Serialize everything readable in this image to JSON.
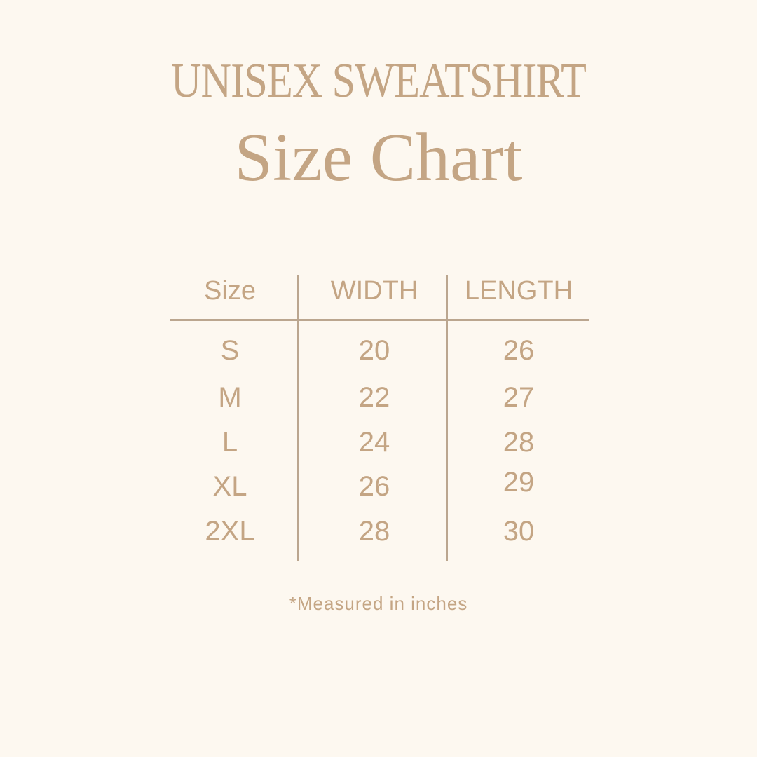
{
  "title": "UNISEX SWEATSHIRT",
  "subtitle": "Size Chart",
  "colors": {
    "background": "#fdf8f0",
    "text": "#c4a584",
    "lines": "#bba68f"
  },
  "table": {
    "headers": [
      "Size",
      "WIDTH",
      "LENGTH"
    ],
    "rows": [
      [
        "S",
        "20",
        "26"
      ],
      [
        "M",
        "22",
        "27"
      ],
      [
        "L",
        "24",
        "28"
      ],
      [
        "XL",
        "26",
        "29"
      ],
      [
        "2XL",
        "28",
        "30"
      ]
    ]
  },
  "note": "*Measured in inches"
}
